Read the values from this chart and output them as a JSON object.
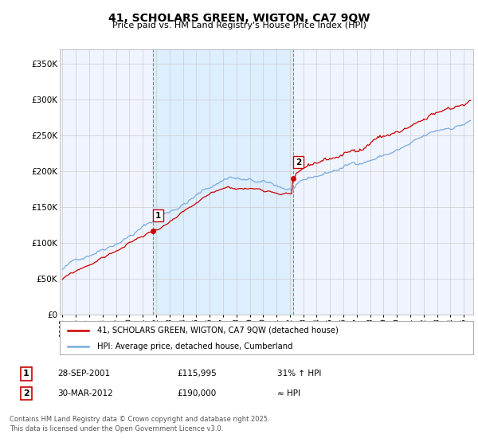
{
  "title": "41, SCHOLARS GREEN, WIGTON, CA7 9QW",
  "subtitle": "Price paid vs. HM Land Registry's House Price Index (HPI)",
  "ylabel_ticks": [
    "£0",
    "£50K",
    "£100K",
    "£150K",
    "£200K",
    "£250K",
    "£300K",
    "£350K"
  ],
  "ytick_values": [
    0,
    50000,
    100000,
    150000,
    200000,
    250000,
    300000,
    350000
  ],
  "ylim": [
    0,
    370000
  ],
  "xlim_start": 1994.8,
  "xlim_end": 2025.7,
  "sale1_x": 2001.742,
  "sale1_y": 115995,
  "sale1_label": "1",
  "sale2_x": 2012.24,
  "sale2_y": 190000,
  "sale2_label": "2",
  "red_line_color": "#cc0000",
  "blue_line_color": "#7aabe0",
  "shade_color": "#ddeeff",
  "grid_color": "#cccccc",
  "background_color": "#f8f8f8",
  "plot_bg_color": "#f0f4ff",
  "legend_label_red": "41, SCHOLARS GREEN, WIGTON, CA7 9QW (detached house)",
  "legend_label_blue": "HPI: Average price, detached house, Cumberland",
  "annotation1_date": "28-SEP-2001",
  "annotation1_price": "£115,995",
  "annotation1_hpi": "31% ↑ HPI",
  "annotation2_date": "30-MAR-2012",
  "annotation2_price": "£190,000",
  "annotation2_hpi": "≈ HPI",
  "footer": "Contains HM Land Registry data © Crown copyright and database right 2025.\nThis data is licensed under the Open Government Licence v3.0.",
  "xtick_years": [
    1995,
    1996,
    1997,
    1998,
    1999,
    2000,
    2001,
    2002,
    2003,
    2004,
    2005,
    2006,
    2007,
    2008,
    2009,
    2010,
    2011,
    2012,
    2013,
    2014,
    2015,
    2016,
    2017,
    2018,
    2019,
    2020,
    2021,
    2022,
    2023,
    2024,
    2025
  ]
}
